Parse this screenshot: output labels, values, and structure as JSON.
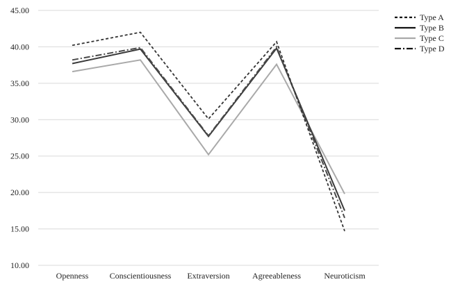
{
  "chart_data": {
    "type": "line",
    "categories": [
      "Openness",
      "Conscientiousness",
      "Extraversion",
      "Agreeableness",
      "Neuroticism"
    ],
    "ylim": [
      10,
      45
    ],
    "yticks": [
      "10.00",
      "15.00",
      "20.00",
      "25.00",
      "30.00",
      "35.00",
      "40.00",
      "45.00"
    ],
    "grid": "horizontal",
    "legend_position": "right",
    "series": [
      {
        "name": "Type A",
        "values": [
          40.2,
          42.0,
          30.1,
          40.7,
          14.7
        ],
        "color": "#333333",
        "dash": "short-dash"
      },
      {
        "name": "Type B",
        "values": [
          37.7,
          39.7,
          27.7,
          39.8,
          17.5
        ],
        "color": "#3a3a3a",
        "dash": "solid"
      },
      {
        "name": "Type C",
        "values": [
          36.6,
          38.2,
          25.2,
          37.6,
          19.8
        ],
        "color": "#a9a9a9",
        "dash": "solid"
      },
      {
        "name": "Type D",
        "values": [
          38.2,
          39.9,
          27.8,
          40.0,
          16.5
        ],
        "color": "#4a4a4a",
        "dash": "dash-dot"
      }
    ]
  }
}
